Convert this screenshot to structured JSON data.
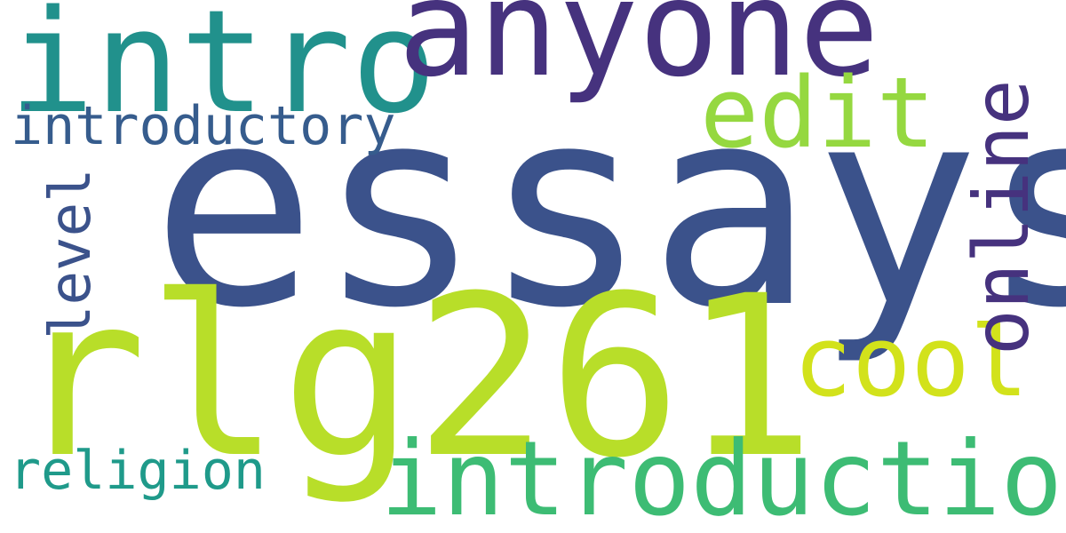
{
  "words": {
    "essays": {
      "text": "essays",
      "color": "#3b528b"
    },
    "rlg261": {
      "text": "rlg261",
      "color": "#b8de29"
    },
    "intro": {
      "text": "intro",
      "color": "#21918c"
    },
    "anyone": {
      "text": "anyone",
      "color": "#46327e"
    },
    "online": {
      "text": "online",
      "color": "#46327e"
    },
    "introduction": {
      "text": "introduction",
      "color": "#3dbc74"
    },
    "edit": {
      "text": "edit",
      "color": "#95d840"
    },
    "cool": {
      "text": "cool",
      "color": "#d2e21b"
    },
    "introductory": {
      "text": "introductory",
      "color": "#365c8d"
    },
    "level": {
      "text": "level",
      "color": "#3b528b"
    },
    "religion": {
      "text": "religion",
      "color": "#1f9a8a"
    }
  }
}
